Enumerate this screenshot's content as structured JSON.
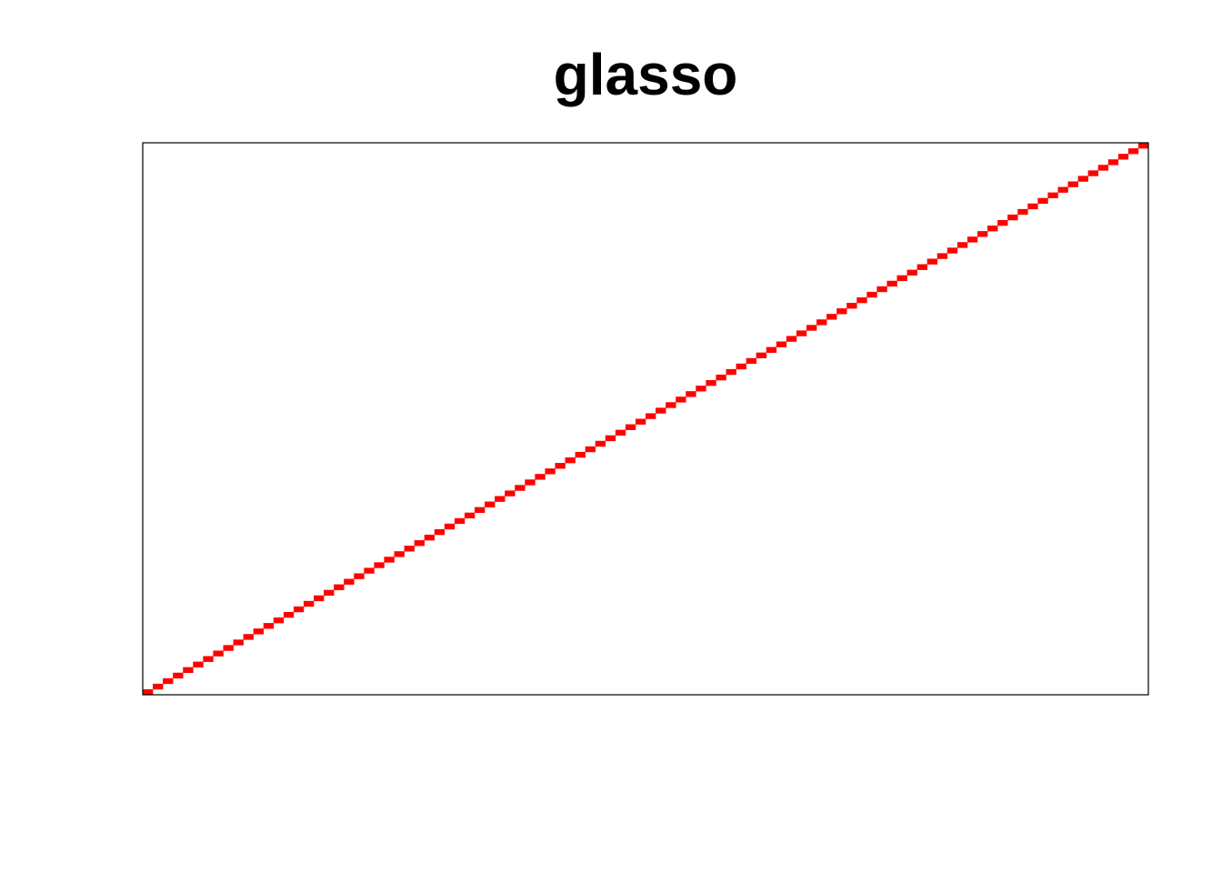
{
  "chart_data": {
    "type": "heatmap",
    "title": "glasso",
    "xlabel": "",
    "ylabel": "",
    "n": 100,
    "x_range": [
      1,
      100
    ],
    "y_range": [
      1,
      100
    ],
    "axes_shown": false,
    "grid": false,
    "legend": "none",
    "nonzero_cells": "diagonal",
    "colors": {
      "nonzero": "#ff0000",
      "zero": "#ffffff",
      "frame": "#000000"
    }
  }
}
